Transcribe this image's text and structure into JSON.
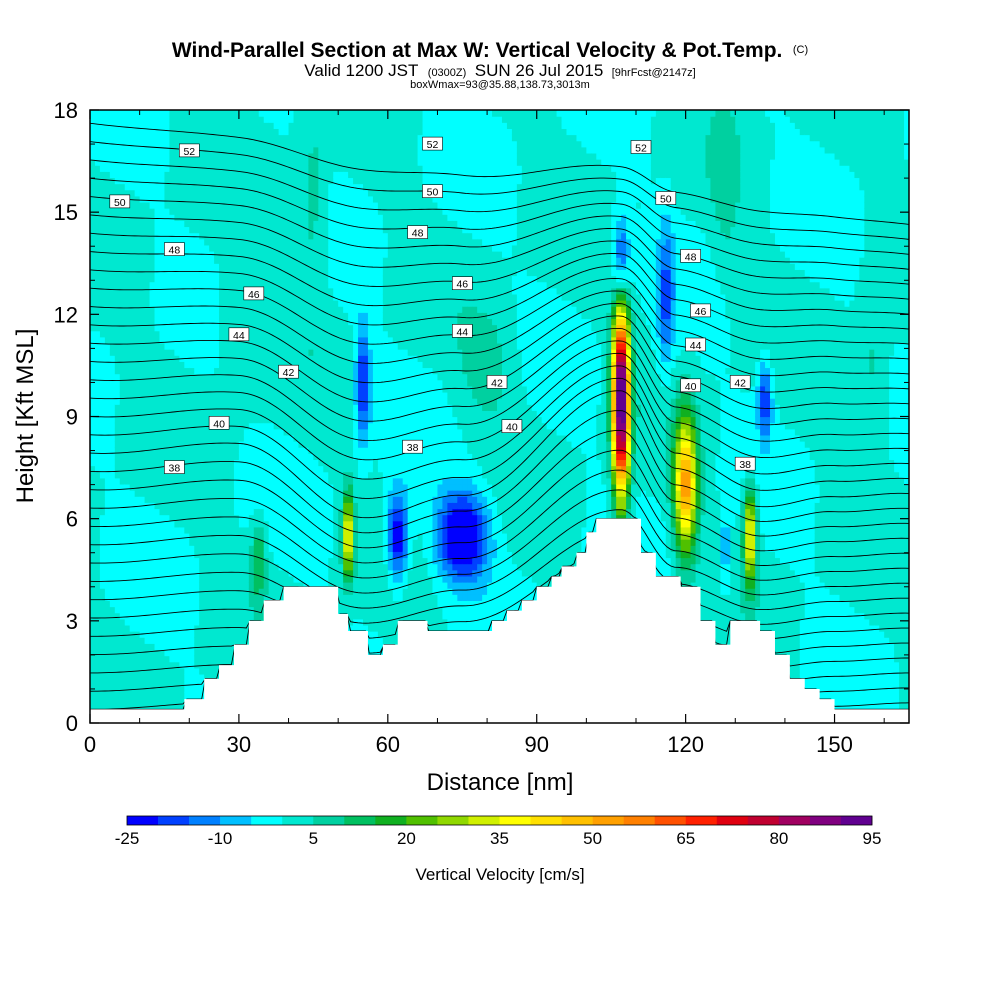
{
  "header": {
    "title": "Wind-Parallel Section at Max W: Vertical Velocity & Pot.Temp.",
    "title_mark": "(C)",
    "subtitle_a": "Valid 1200 JST",
    "subtitle_b": "(0300Z)",
    "subtitle_c": "SUN 26 Jul 2015",
    "subtitle_d": "[9hrFcst@2147z]",
    "box_note": "boxWmax=93@35.88,138.73,3013m"
  },
  "chart_data": {
    "type": "heatmap",
    "title": "Wind-Parallel Section at Max W: Vertical Velocity & Pot.Temp.",
    "xlabel": "Distance [nm]",
    "ylabel": "Height [Kft MSL]",
    "xlim": [
      0,
      165
    ],
    "ylim": [
      0,
      18
    ],
    "x_ticks": [
      0,
      30,
      60,
      90,
      120,
      150
    ],
    "y_ticks": [
      0,
      3,
      6,
      9,
      12,
      15,
      18
    ],
    "colorbar": {
      "label": "Vertical Velocity [cm/s]",
      "min": -25,
      "max": 95,
      "step": 5,
      "tick_values": [
        -25,
        -10,
        5,
        20,
        35,
        50,
        65,
        80,
        95
      ],
      "colors": [
        "#0000ff",
        "#0040ff",
        "#0080ff",
        "#00bfff",
        "#00ffff",
        "#00e8d0",
        "#00d0a0",
        "#00c060",
        "#10b020",
        "#50c000",
        "#90d800",
        "#d0f000",
        "#ffff00",
        "#ffe000",
        "#ffc000",
        "#ffa000",
        "#ff8000",
        "#ff5000",
        "#ff2000",
        "#e00010",
        "#c00030",
        "#a00060",
        "#800080",
        "#600090"
      ]
    },
    "terrain": [
      [
        0,
        0.4
      ],
      [
        19,
        0.4
      ],
      [
        19,
        0.7
      ],
      [
        23,
        0.7
      ],
      [
        23,
        1.3
      ],
      [
        26,
        1.3
      ],
      [
        26,
        1.7
      ],
      [
        29,
        1.7
      ],
      [
        29,
        2.3
      ],
      [
        32,
        2.3
      ],
      [
        32,
        3.0
      ],
      [
        35,
        3.0
      ],
      [
        35,
        3.6
      ],
      [
        39,
        3.6
      ],
      [
        39,
        4.0
      ],
      [
        50,
        4.0
      ],
      [
        50,
        3.2
      ],
      [
        52,
        3.2
      ],
      [
        52,
        2.7
      ],
      [
        56,
        2.7
      ],
      [
        56,
        2.0
      ],
      [
        59,
        2.0
      ],
      [
        59,
        2.3
      ],
      [
        62,
        2.3
      ],
      [
        62,
        3.0
      ],
      [
        68,
        3.0
      ],
      [
        68,
        2.7
      ],
      [
        81,
        2.7
      ],
      [
        81,
        3.0
      ],
      [
        84,
        3.0
      ],
      [
        84,
        3.3
      ],
      [
        87,
        3.3
      ],
      [
        87,
        3.6
      ],
      [
        90,
        3.6
      ],
      [
        90,
        4.0
      ],
      [
        93,
        4.0
      ],
      [
        93,
        4.3
      ],
      [
        95,
        4.3
      ],
      [
        95,
        4.6
      ],
      [
        98,
        4.6
      ],
      [
        98,
        5.0
      ],
      [
        100,
        5.0
      ],
      [
        100,
        5.6
      ],
      [
        102,
        5.6
      ],
      [
        102,
        6.0
      ],
      [
        111,
        6.0
      ],
      [
        111,
        5.0
      ],
      [
        114,
        5.0
      ],
      [
        114,
        4.3
      ],
      [
        119,
        4.3
      ],
      [
        119,
        4.0
      ],
      [
        123,
        4.0
      ],
      [
        123,
        3.0
      ],
      [
        126,
        3.0
      ],
      [
        126,
        2.3
      ],
      [
        129,
        2.3
      ],
      [
        129,
        3.0
      ],
      [
        135,
        3.0
      ],
      [
        135,
        2.7
      ],
      [
        138,
        2.7
      ],
      [
        138,
        2.0
      ],
      [
        141,
        2.0
      ],
      [
        141,
        1.3
      ],
      [
        144,
        1.3
      ],
      [
        144,
        1.0
      ],
      [
        147,
        1.0
      ],
      [
        147,
        0.7
      ],
      [
        150,
        0.7
      ],
      [
        150,
        0.4
      ],
      [
        165,
        0.4
      ]
    ],
    "w_features": [
      {
        "x": 107,
        "y": 9.5,
        "sx": 1.2,
        "sy": 2.0,
        "amp": 100
      },
      {
        "x": 120,
        "y": 7.0,
        "sx": 1.6,
        "sy": 1.4,
        "amp": 52
      },
      {
        "x": 52,
        "y": 5.5,
        "sx": 0.8,
        "sy": 0.9,
        "amp": 38
      },
      {
        "x": 133,
        "y": 5.5,
        "sx": 0.9,
        "sy": 1.0,
        "amp": 40
      },
      {
        "x": 34,
        "y": 4.8,
        "sx": 1.0,
        "sy": 0.8,
        "amp": 16
      },
      {
        "x": 75,
        "y": 5.5,
        "sx": 3.5,
        "sy": 0.9,
        "amp": -32
      },
      {
        "x": 62,
        "y": 5.5,
        "sx": 1.5,
        "sy": 0.9,
        "amp": -28
      },
      {
        "x": 55,
        "y": 10.0,
        "sx": 1.0,
        "sy": 1.2,
        "amp": -22
      },
      {
        "x": 107,
        "y": 13.5,
        "sx": 1.2,
        "sy": 1.0,
        "amp": -25
      },
      {
        "x": 136,
        "y": 9.5,
        "sx": 1.0,
        "sy": 0.8,
        "amp": -20
      },
      {
        "x": 128,
        "y": 5.0,
        "sx": 0.6,
        "sy": 0.9,
        "amp": -12
      },
      {
        "x": 116,
        "y": 12.5,
        "sx": 1.2,
        "sy": 1.5,
        "amp": -16
      },
      {
        "x": 45,
        "y": 15.0,
        "sx": 2.0,
        "sy": 2.0,
        "amp": 8
      },
      {
        "x": 80,
        "y": 10.5,
        "sx": 4.0,
        "sy": 1.2,
        "amp": 7
      },
      {
        "x": 30,
        "y": 12.0,
        "sx": 3.0,
        "sy": 1.5,
        "amp": 6
      },
      {
        "x": 128,
        "y": 16.0,
        "sx": 2.0,
        "sy": 2.0,
        "amp": 6
      },
      {
        "x": 158,
        "y": 10.0,
        "sx": 2.0,
        "sy": 2.0,
        "amp": 7
      }
    ],
    "theta_contours": {
      "min": 36,
      "max": 53,
      "step": 0.5,
      "labels": [
        {
          "value": 52,
          "x": 20,
          "y": 16.8
        },
        {
          "value": 52,
          "x": 69,
          "y": 17.0
        },
        {
          "value": 52,
          "x": 111,
          "y": 16.9
        },
        {
          "value": 50,
          "x": 6,
          "y": 15.3
        },
        {
          "value": 50,
          "x": 69,
          "y": 15.6
        },
        {
          "value": 50,
          "x": 116,
          "y": 15.4
        },
        {
          "value": 48,
          "x": 17,
          "y": 13.9
        },
        {
          "value": 48,
          "x": 66,
          "y": 14.4
        },
        {
          "value": 48,
          "x": 121,
          "y": 13.7
        },
        {
          "value": 46,
          "x": 33,
          "y": 12.6
        },
        {
          "value": 46,
          "x": 75,
          "y": 12.9
        },
        {
          "value": 46,
          "x": 123,
          "y": 12.1
        },
        {
          "value": 44,
          "x": 30,
          "y": 11.4
        },
        {
          "value": 44,
          "x": 75,
          "y": 11.5
        },
        {
          "value": 44,
          "x": 122,
          "y": 11.1
        },
        {
          "value": 42,
          "x": 40,
          "y": 10.3
        },
        {
          "value": 42,
          "x": 82,
          "y": 10.0
        },
        {
          "value": 42,
          "x": 131,
          "y": 10.0
        },
        {
          "value": 40,
          "x": 26,
          "y": 8.8
        },
        {
          "value": 40,
          "x": 85,
          "y": 8.7
        },
        {
          "value": 40,
          "x": 121,
          "y": 9.9
        },
        {
          "value": 38,
          "x": 17,
          "y": 7.5
        },
        {
          "value": 38,
          "x": 65,
          "y": 8.1
        },
        {
          "value": 38,
          "x": 132,
          "y": 7.6
        }
      ]
    }
  }
}
